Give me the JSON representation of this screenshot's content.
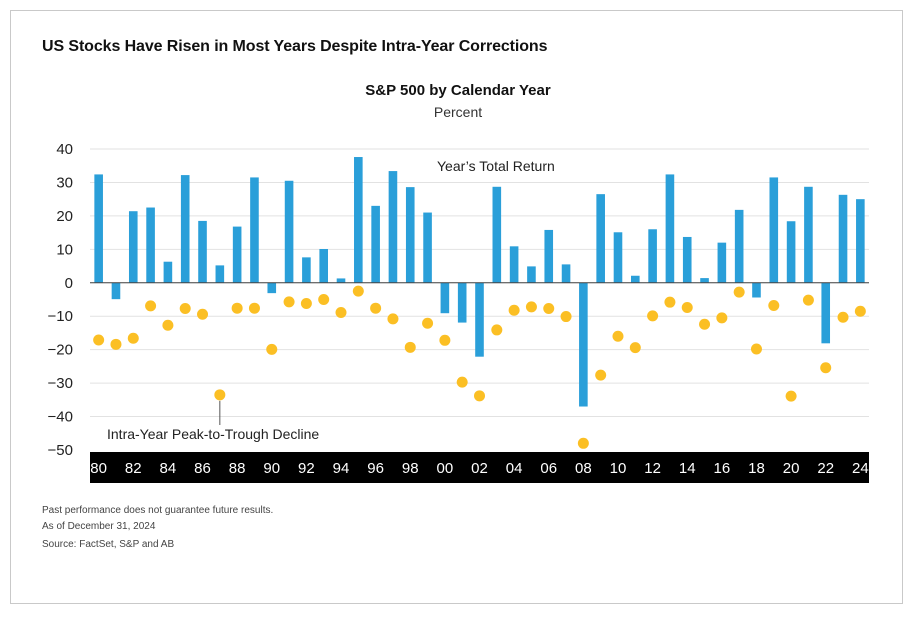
{
  "title": "US Stocks Have Risen in Most Years Despite Intra-Year Corrections",
  "footnotes": [
    "Past performance does not guarantee future results.",
    "As of December 31, 2024",
    "Source: FactSet, S&P and AB"
  ],
  "colors": {
    "bar": "#2a9fd9",
    "dot": "#fbbf24",
    "axis_band": "#000000",
    "grid": "#e2e2e2"
  },
  "chart_data": {
    "type": "bar",
    "title": "S&P 500 by Calendar Year",
    "subtitle": "Percent",
    "ylim": [
      -50,
      40
    ],
    "yticks": [
      40,
      30,
      20,
      10,
      0,
      -10,
      -20,
      -30,
      -40,
      -50
    ],
    "ytick_labels": [
      "40",
      "30",
      "20",
      "10",
      "0",
      "−10",
      "−20",
      "−30",
      "−40",
      "−50"
    ],
    "grid": true,
    "categories": [
      "1980",
      "1981",
      "1982",
      "1983",
      "1984",
      "1985",
      "1986",
      "1987",
      "1988",
      "1989",
      "1990",
      "1991",
      "1992",
      "1993",
      "1994",
      "1995",
      "1996",
      "1997",
      "1998",
      "1999",
      "2000",
      "2001",
      "2002",
      "2003",
      "2004",
      "2005",
      "2006",
      "2007",
      "2008",
      "2009",
      "2010",
      "2011",
      "2012",
      "2013",
      "2014",
      "2015",
      "2016",
      "2017",
      "2018",
      "2019",
      "2020",
      "2021",
      "2022",
      "2023",
      "2024"
    ],
    "xtick_labels": [
      "80",
      "82",
      "84",
      "86",
      "88",
      "90",
      "92",
      "94",
      "96",
      "98",
      "00",
      "02",
      "04",
      "06",
      "08",
      "10",
      "12",
      "14",
      "16",
      "18",
      "20",
      "22",
      "24"
    ],
    "series": [
      {
        "name": "Year’s Total Return",
        "kind": "bar",
        "values": [
          32.4,
          -4.9,
          21.4,
          22.5,
          6.3,
          32.2,
          18.5,
          5.2,
          16.8,
          31.5,
          -3.1,
          30.5,
          7.6,
          10.1,
          1.3,
          37.6,
          23.0,
          33.4,
          28.6,
          21.0,
          -9.1,
          -11.9,
          -22.1,
          28.7,
          10.9,
          4.9,
          15.8,
          5.5,
          -37.0,
          26.5,
          15.1,
          2.1,
          16.0,
          32.4,
          13.7,
          1.4,
          12.0,
          21.8,
          -4.4,
          31.5,
          18.4,
          28.7,
          -18.1,
          26.3,
          25.0
        ]
      },
      {
        "name": "Intra-Year Peak-to-Trough Decline",
        "kind": "scatter",
        "values": [
          -17.1,
          -18.4,
          -16.6,
          -6.9,
          -12.7,
          -7.7,
          -9.4,
          -33.5,
          -7.6,
          -7.6,
          -19.9,
          -5.7,
          -6.2,
          -5.0,
          -8.9,
          -2.5,
          -7.6,
          -10.8,
          -19.3,
          -12.1,
          -17.2,
          -29.7,
          -33.8,
          -14.1,
          -8.2,
          -7.2,
          -7.7,
          -10.1,
          -48.0,
          -27.6,
          -16.0,
          -19.4,
          -9.9,
          -5.8,
          -7.4,
          -12.4,
          -10.5,
          -2.8,
          -19.8,
          -6.8,
          -33.9,
          -5.2,
          -25.4,
          -10.3,
          -8.5
        ]
      }
    ],
    "annotations": [
      "Year’s Total Return",
      "Intra-Year Peak-to-Trough Decline"
    ]
  }
}
